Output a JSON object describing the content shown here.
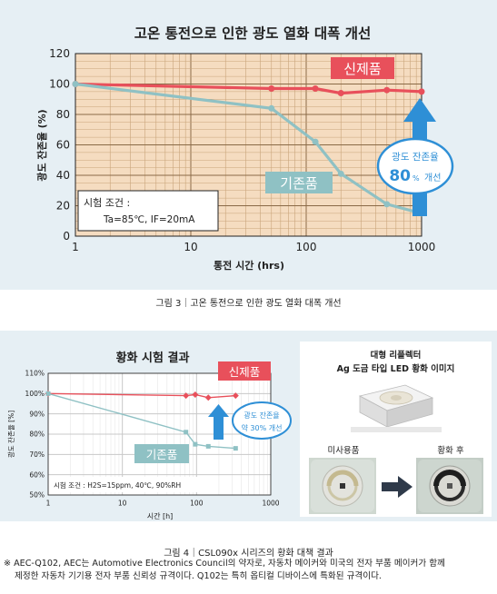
{
  "chart_data": [
    {
      "type": "line",
      "title": "고온 통전으로 인한 광도 열화 대폭 개선",
      "xlabel": "통전 시간 (hrs)",
      "ylabel": "광도 잔존율 (%)",
      "xscale": "log",
      "xlim": [
        1,
        1000
      ],
      "ylim": [
        0,
        120
      ],
      "x_ticks": [
        "1",
        "10",
        "100",
        "1000"
      ],
      "y_ticks": [
        "0",
        "20",
        "40",
        "60",
        "80",
        "100",
        "120"
      ],
      "grid": true,
      "series": [
        {
          "name": "신제품",
          "color": "#e8505b",
          "points": [
            [
              1,
              100
            ],
            [
              50,
              97
            ],
            [
              120,
              97
            ],
            [
              200,
              94
            ],
            [
              500,
              96
            ],
            [
              1000,
              95
            ]
          ]
        },
        {
          "name": "기존품",
          "color": "#8fc1c4",
          "points": [
            [
              1,
              100
            ],
            [
              50,
              84
            ],
            [
              120,
              62
            ],
            [
              200,
              41
            ],
            [
              500,
              21
            ],
            [
              1000,
              15
            ]
          ]
        }
      ],
      "test_conditions": {
        "label": "시험 조건 :",
        "value": "Ta=85℃, IF=20mA"
      },
      "callout": {
        "line1": "광도 잔존율",
        "big": "80",
        "unit": "%",
        "suffix": "개선"
      }
    },
    {
      "type": "line",
      "title": "황화 시험 결과",
      "xlabel": "시간 [h]",
      "ylabel": "광도 잔존율 [%]",
      "xscale": "log",
      "xlim": [
        1,
        1000
      ],
      "ylim": [
        50,
        110
      ],
      "x_ticks": [
        "1",
        "10",
        "100",
        "1000"
      ],
      "y_ticks": [
        "50%",
        "60%",
        "70%",
        "80%",
        "90%",
        "100%",
        "110%"
      ],
      "grid": true,
      "series": [
        {
          "name": "신제품",
          "color": "#e8505b",
          "points": [
            [
              1,
              100
            ],
            [
              72,
              99
            ],
            [
              96,
              99.5
            ],
            [
              144,
              98
            ],
            [
              336,
              99
            ]
          ]
        },
        {
          "name": "기존품",
          "color": "#8fc1c4",
          "points": [
            [
              1,
              100
            ],
            [
              72,
              81
            ],
            [
              96,
              75
            ],
            [
              144,
              74
            ],
            [
              336,
              73
            ]
          ]
        }
      ],
      "test_conditions": {
        "label": "시험 조건 : H2S=15ppm, 40℃, 90%RH"
      },
      "callout": {
        "line1": "광도 잔존율",
        "line2": "약 30% 개선"
      }
    }
  ],
  "photos": {
    "title_line1": "대형 리플렉터",
    "title_line2": "Ag 도금 타입 LED 황화 이미지",
    "before_label": "미사용품",
    "after_label": "황화 후"
  },
  "captions": {
    "figure3": "그림 3｜고온 통전으로 인한 광도 열화 대폭 개선",
    "figure4": "그림 4｜CSL090x 시리즈의 황화 대책 결과"
  },
  "note": {
    "line1": "※ AEC-Q102, AEC는 Automotive Electronics Council의 약자로, 자동차 메이커와 미국의 전자 부품 메이커가 함께",
    "line2": "제정한 자동차 기기용 전자 부품 신뢰성 규격이다. Q102는 특히 옵티컬 디바이스에 특화된 규격이다."
  }
}
